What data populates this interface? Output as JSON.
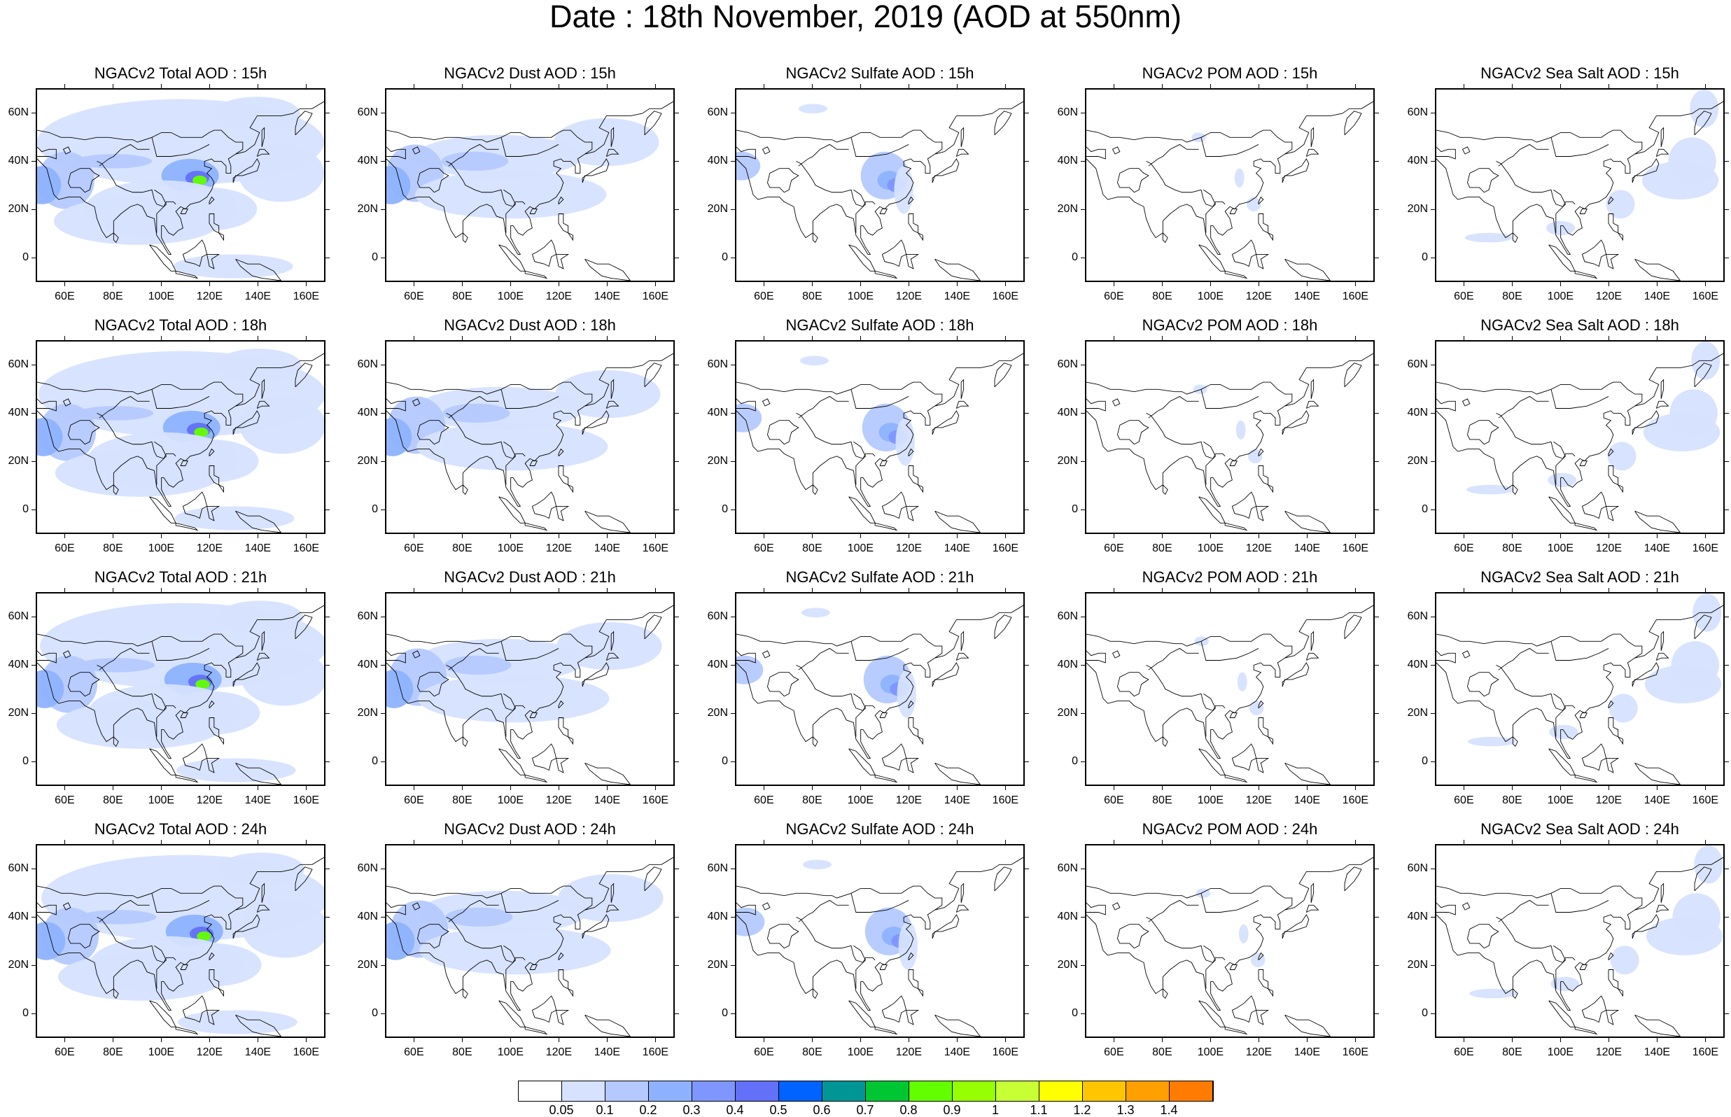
{
  "title": "Date : 18th November, 2019 (AOD at 550nm)",
  "panels": [
    [
      "NGACv2 Total AOD : 15h",
      "NGACv2 Dust AOD : 15h",
      "NGACv2 Sulfate AOD : 15h",
      "NGACv2 POM AOD : 15h",
      "NGACv2 Sea Salt AOD : 15h"
    ],
    [
      "NGACv2 Total AOD : 18h",
      "NGACv2 Dust AOD : 18h",
      "NGACv2 Sulfate AOD : 18h",
      "NGACv2 POM AOD : 18h",
      "NGACv2 Sea Salt AOD : 18h"
    ],
    [
      "NGACv2 Total AOD : 21h",
      "NGACv2 Dust AOD : 21h",
      "NGACv2 Sulfate AOD : 21h",
      "NGACv2 POM AOD : 21h",
      "NGACv2 Sea Salt AOD : 21h"
    ],
    [
      "NGACv2 Total AOD : 24h",
      "NGACv2 Dust AOD : 24h",
      "NGACv2 Sulfate AOD : 24h",
      "NGACv2 POM AOD : 24h",
      "NGACv2 Sea Salt  AOD : 24h"
    ]
  ],
  "lat_ticks": [
    "60N",
    "40N",
    "20N",
    "0"
  ],
  "lon_ticks": [
    "60E",
    "80E",
    "100E",
    "120E",
    "140E",
    "160E"
  ],
  "colorbar": {
    "labels": [
      "0.05",
      "0.1",
      "0.2",
      "0.3",
      "0.4",
      "0.5",
      "0.6",
      "0.7",
      "0.8",
      "0.9",
      "1",
      "1.1",
      "1.2",
      "1.3",
      "1.4"
    ],
    "colors": [
      "#ffffff",
      "#d6e2ff",
      "#b5c9ff",
      "#8eb2ff",
      "#7f96ff",
      "#6370f8",
      "#0063ff",
      "#009696",
      "#00c633",
      "#63ff00",
      "#96ff00",
      "#c6ff33",
      "#ffff00",
      "#ffc600",
      "#ffa000",
      "#ff7c00",
      "#ff1900"
    ]
  }
}
